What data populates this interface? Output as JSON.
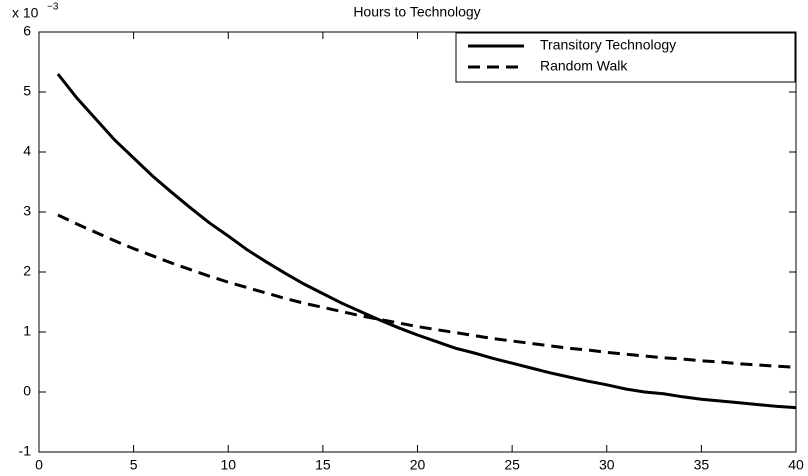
{
  "chart_data": {
    "type": "line",
    "title": "Hours to Technology",
    "y_multiplier": "x 10",
    "y_multiplier_exponent": "−3",
    "x": [
      1,
      2,
      3,
      4,
      5,
      6,
      7,
      8,
      9,
      10,
      11,
      12,
      13,
      14,
      15,
      16,
      17,
      18,
      19,
      20,
      21,
      22,
      23,
      24,
      25,
      26,
      27,
      28,
      29,
      30,
      31,
      32,
      33,
      34,
      35,
      36,
      37,
      38,
      39,
      40
    ],
    "series": [
      {
        "name": "Transitory Technology",
        "color": "#000000",
        "dash": false,
        "values": [
          5.3,
          4.9,
          4.55,
          4.2,
          3.9,
          3.6,
          3.33,
          3.07,
          2.82,
          2.6,
          2.37,
          2.17,
          1.98,
          1.8,
          1.64,
          1.48,
          1.34,
          1.2,
          1.07,
          0.95,
          0.84,
          0.73,
          0.65,
          0.56,
          0.48,
          0.4,
          0.32,
          0.25,
          0.18,
          0.12,
          0.05,
          0.0,
          -0.03,
          -0.08,
          -0.12,
          -0.15,
          -0.18,
          -0.21,
          -0.24,
          -0.26
        ]
      },
      {
        "name": "Random Walk",
        "color": "#000000",
        "dash": true,
        "values": [
          2.95,
          2.8,
          2.66,
          2.52,
          2.39,
          2.27,
          2.15,
          2.04,
          1.93,
          1.83,
          1.74,
          1.65,
          1.56,
          1.48,
          1.41,
          1.34,
          1.27,
          1.21,
          1.15,
          1.09,
          1.04,
          0.99,
          0.94,
          0.89,
          0.85,
          0.81,
          0.77,
          0.73,
          0.7,
          0.66,
          0.63,
          0.6,
          0.57,
          0.55,
          0.52,
          0.5,
          0.47,
          0.45,
          0.43,
          0.41
        ]
      }
    ],
    "xlim": [
      0,
      40
    ],
    "xticks": [
      0,
      5,
      10,
      15,
      20,
      25,
      30,
      35,
      40
    ],
    "ylim": [
      -1,
      6
    ],
    "yticks": [
      -1,
      0,
      1,
      2,
      3,
      4,
      5,
      6
    ],
    "grid": false,
    "legend": "northeast"
  }
}
